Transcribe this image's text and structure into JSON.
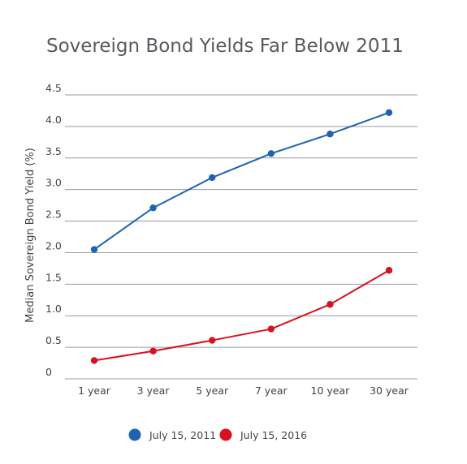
{
  "chart_data": {
    "type": "line",
    "title": "Sovereign Bond Yields Far Below 2011",
    "xlabel": "",
    "ylabel": "Median Sovereign Bond Yield (%)",
    "categories": [
      "1 year",
      "3 year",
      "5 year",
      "7 year",
      "10 year",
      "30 year"
    ],
    "ylim": [
      0,
      4.5
    ],
    "yticks": [
      "0",
      "0.5",
      "1.0",
      "1.5",
      "2.0",
      "2.5",
      "3.0",
      "3.5",
      "4.0",
      "4.5"
    ],
    "grid": true,
    "legend_position": "bottom-center",
    "series": [
      {
        "name": "July 15, 2011",
        "color": "#1f63b0",
        "values": [
          2.05,
          2.71,
          3.19,
          3.57,
          3.88,
          4.22
        ]
      },
      {
        "name": "July 15, 2016",
        "color": "#d9101e",
        "values": [
          0.29,
          0.44,
          0.61,
          0.79,
          1.18,
          1.72
        ]
      }
    ]
  }
}
